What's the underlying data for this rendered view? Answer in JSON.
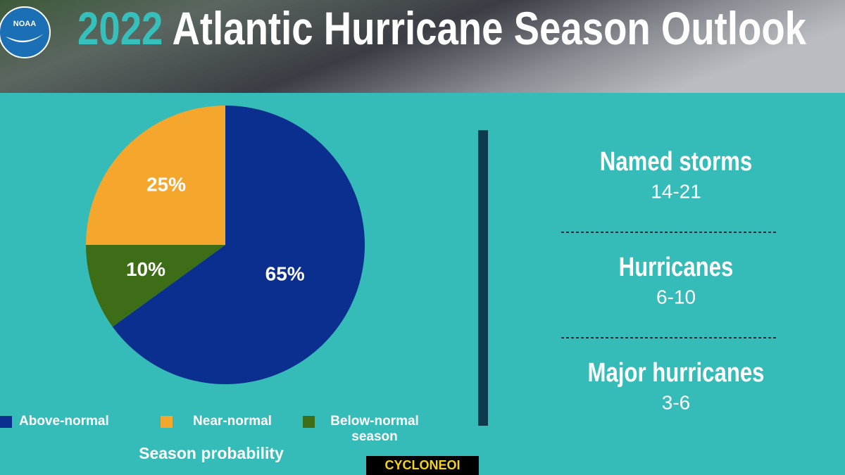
{
  "logo": "NOAA",
  "watermark": "CYCLONEOI",
  "chart_data": {
    "type": "pie",
    "title_year": "2022",
    "title": "Atlantic Hurricane Season Outlook",
    "categories": [
      "Above-normal",
      "Near-normal",
      "Below-normal season"
    ],
    "values": [
      65,
      25,
      10
    ],
    "value_labels": [
      "65%",
      "25%",
      "10%"
    ],
    "colors": [
      "#0b2f8e",
      "#f4a72c",
      "#3e6d18"
    ],
    "slice_order": [
      0,
      2,
      1
    ],
    "legend_title": "Season probability"
  },
  "outlook": [
    {
      "label": "Named storms",
      "value": "14-21"
    },
    {
      "label": "Hurricanes",
      "value": "6-10"
    },
    {
      "label": "Major hurricanes",
      "value": "3-6"
    }
  ]
}
